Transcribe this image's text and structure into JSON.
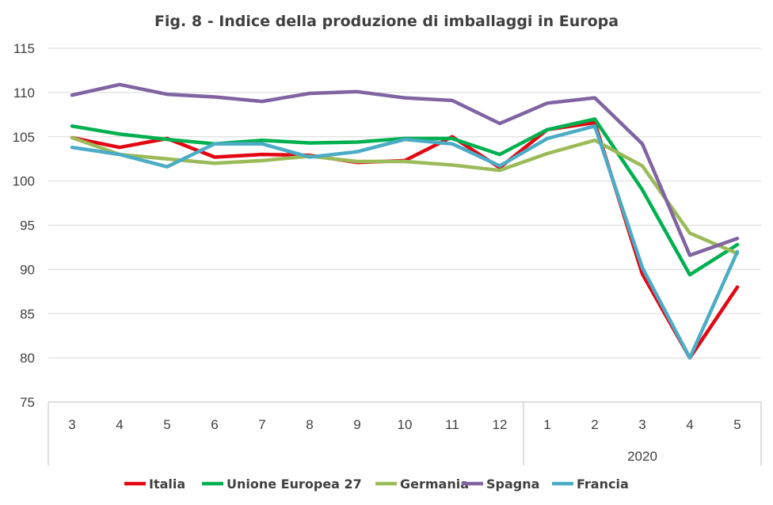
{
  "chart_data": {
    "type": "line",
    "title": "Fig. 8 - Indice della produzione di imballaggi in Europa",
    "xlabel": "",
    "ylabel": "",
    "ylim": [
      75,
      115
    ],
    "yticks": [
      "75",
      "80",
      "85",
      "90",
      "95",
      "100",
      "105",
      "110",
      "115"
    ],
    "categories": [
      "3",
      "4",
      "5",
      "6",
      "7",
      "8",
      "9",
      "10",
      "11",
      "12",
      "1",
      "2",
      "3",
      "4",
      "5"
    ],
    "year_group_label": "2020",
    "grid": true,
    "legend_position": "bottom",
    "series": [
      {
        "name": "Italia",
        "color": "#e30613",
        "values": [
          104.9,
          103.8,
          104.8,
          102.7,
          103.0,
          102.9,
          102.1,
          102.3,
          105.0,
          101.5,
          105.8,
          106.6,
          89.5,
          80.0,
          88.0
        ]
      },
      {
        "name": "Unione Europea 27",
        "color": "#00b050",
        "values": [
          106.2,
          105.3,
          104.7,
          104.2,
          104.6,
          104.3,
          104.4,
          104.8,
          104.8,
          103.0,
          105.8,
          107.0,
          99.0,
          89.4,
          92.8
        ]
      },
      {
        "name": "Germania",
        "color": "#9bbb59",
        "values": [
          104.9,
          103.0,
          102.5,
          102.0,
          102.3,
          102.8,
          102.2,
          102.2,
          101.8,
          101.2,
          103.1,
          104.6,
          101.7,
          94.1,
          91.8
        ]
      },
      {
        "name": "Spagna",
        "color": "#8064a2",
        "values": [
          109.7,
          110.9,
          109.8,
          109.5,
          109.0,
          109.9,
          110.1,
          109.4,
          109.1,
          106.5,
          108.8,
          109.4,
          104.2,
          91.6,
          93.5
        ]
      },
      {
        "name": "Francia",
        "color": "#4bacc6",
        "values": [
          103.8,
          103.0,
          101.6,
          104.2,
          104.2,
          102.7,
          103.3,
          104.7,
          104.2,
          101.7,
          104.8,
          106.2,
          90.2,
          80.0,
          92.0
        ]
      }
    ]
  }
}
